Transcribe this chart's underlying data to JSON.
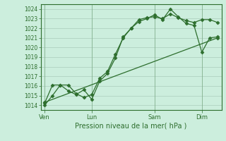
{
  "background_color": "#cceedd",
  "grid_color": "#aaccbb",
  "line_color": "#2d6e2d",
  "marker": "D",
  "marker_size": 2.5,
  "xlabel": "Pression niveau de la mer( hPa )",
  "ylim": [
    1013.5,
    1024.5
  ],
  "yticks": [
    1014,
    1015,
    1016,
    1017,
    1018,
    1019,
    1020,
    1021,
    1022,
    1023,
    1024
  ],
  "xtick_labels": [
    "Ven",
    "Lun",
    "Sam",
    "Dim"
  ],
  "xtick_positions": [
    0,
    6,
    14,
    20
  ],
  "vline_positions": [
    0,
    6,
    14,
    20
  ],
  "line1_x": [
    0,
    1,
    2,
    3,
    4,
    5,
    6,
    7,
    8,
    9,
    10,
    11,
    12,
    13,
    14,
    15,
    16,
    17,
    18,
    19,
    20,
    21,
    22
  ],
  "line1_y": [
    1014.0,
    1015.0,
    1016.1,
    1016.1,
    1015.2,
    1014.8,
    1015.1,
    1016.8,
    1017.5,
    1019.3,
    1021.0,
    1022.0,
    1022.9,
    1023.1,
    1023.2,
    1023.0,
    1023.5,
    1023.1,
    1022.8,
    1022.6,
    1022.9,
    1022.9,
    1022.6
  ],
  "line2_x": [
    0,
    1,
    2,
    3,
    4,
    5,
    6,
    7,
    8,
    9,
    10,
    11,
    12,
    13,
    14,
    15,
    16,
    17,
    18,
    19,
    20,
    21,
    22
  ],
  "line2_y": [
    1014.2,
    1016.1,
    1016.1,
    1015.5,
    1015.1,
    1015.6,
    1014.6,
    1016.5,
    1017.3,
    1018.9,
    1021.1,
    1022.0,
    1022.7,
    1023.0,
    1023.4,
    1022.9,
    1024.0,
    1023.2,
    1022.5,
    1022.3,
    1019.5,
    1021.0,
    1021.1
  ],
  "line3_x": [
    0,
    22
  ],
  "line3_y": [
    1014.3,
    1021.0
  ],
  "xlim": [
    -0.5,
    22.5
  ]
}
